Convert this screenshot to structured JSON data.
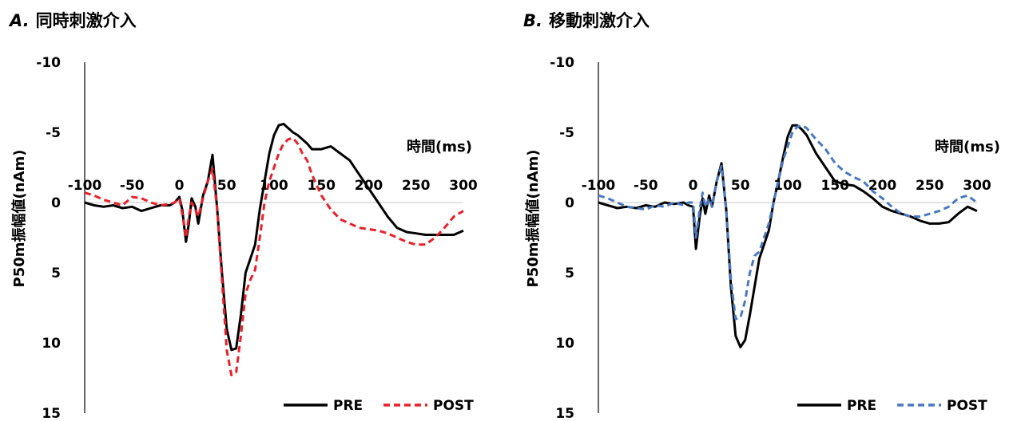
{
  "chart_data": [
    {
      "panel": "A.",
      "title": "同時刺激介入",
      "type": "line",
      "xlabel": "時間(ms)",
      "ylabel": "P50m振幅値(nAm)",
      "xlim": [
        -100,
        300
      ],
      "ylim": [
        -10,
        15
      ],
      "y_inverted": true,
      "x_ticks": [
        -100,
        -50,
        0,
        50,
        100,
        150,
        200,
        250,
        300
      ],
      "y_ticks": [
        -10,
        -5,
        0,
        5,
        10,
        15
      ],
      "grid": false,
      "legend_position": "bottom-right",
      "series": [
        {
          "name": "PRE",
          "color": "#000000",
          "dash": "solid",
          "x": [
            -100,
            -90,
            -80,
            -70,
            -60,
            -50,
            -40,
            -30,
            -20,
            -10,
            -5,
            0,
            3,
            7,
            10,
            13,
            17,
            20,
            25,
            30,
            35,
            40,
            45,
            50,
            55,
            60,
            65,
            70,
            75,
            80,
            85,
            90,
            95,
            100,
            105,
            110,
            115,
            120,
            125,
            130,
            135,
            140,
            150,
            160,
            170,
            180,
            190,
            200,
            210,
            220,
            230,
            240,
            250,
            260,
            270,
            280,
            290,
            300
          ],
          "y": [
            0.0,
            0.2,
            0.3,
            0.2,
            0.4,
            0.3,
            0.6,
            0.4,
            0.2,
            0.2,
            0.0,
            -0.4,
            0.5,
            2.8,
            1.5,
            -0.3,
            0.3,
            1.5,
            -0.5,
            -1.5,
            -3.4,
            0.5,
            5.0,
            9.0,
            10.5,
            10.4,
            8.0,
            5.0,
            4.0,
            3.0,
            0.5,
            -1.5,
            -3.5,
            -4.8,
            -5.5,
            -5.6,
            -5.3,
            -5.0,
            -4.8,
            -4.5,
            -4.2,
            -3.8,
            -3.8,
            -4.0,
            -3.5,
            -3.0,
            -2.0,
            -1.0,
            0.0,
            1.0,
            1.8,
            2.1,
            2.2,
            2.3,
            2.3,
            2.3,
            2.3,
            2.0
          ]
        },
        {
          "name": "POST",
          "color": "#e8202a",
          "dash": "dashed",
          "x": [
            -100,
            -90,
            -80,
            -70,
            -60,
            -50,
            -40,
            -30,
            -20,
            -10,
            -5,
            0,
            3,
            7,
            10,
            13,
            17,
            20,
            25,
            30,
            35,
            40,
            45,
            50,
            55,
            60,
            65,
            70,
            75,
            80,
            85,
            90,
            95,
            100,
            105,
            110,
            115,
            120,
            125,
            130,
            135,
            140,
            150,
            160,
            170,
            180,
            190,
            200,
            210,
            220,
            230,
            240,
            250,
            260,
            270,
            280,
            290,
            300
          ],
          "y": [
            -0.7,
            -0.5,
            -0.2,
            0.0,
            0.2,
            -0.4,
            -0.3,
            0.0,
            0.2,
            0.1,
            0.0,
            -0.3,
            0.8,
            2.5,
            1.0,
            0.0,
            0.5,
            1.0,
            -0.3,
            -1.5,
            -2.4,
            0.5,
            5.5,
            10.5,
            12.3,
            12.1,
            9.5,
            6.5,
            5.5,
            4.8,
            2.5,
            0.0,
            -1.5,
            -2.5,
            -3.5,
            -4.2,
            -4.5,
            -4.6,
            -4.2,
            -3.5,
            -3.0,
            -2.0,
            -0.5,
            0.5,
            1.2,
            1.5,
            1.8,
            1.9,
            2.0,
            2.2,
            2.5,
            2.8,
            3.0,
            3.0,
            2.5,
            1.8,
            1.0,
            0.6
          ]
        }
      ]
    },
    {
      "panel": "B.",
      "title": "移動刺激介入",
      "type": "line",
      "xlabel": "時間(ms)",
      "ylabel": "P50m振幅値(nAm)",
      "xlim": [
        -100,
        300
      ],
      "ylim": [
        -10,
        15
      ],
      "y_inverted": true,
      "x_ticks": [
        -100,
        -50,
        0,
        50,
        100,
        150,
        200,
        250,
        300
      ],
      "y_ticks": [
        -10,
        -5,
        0,
        5,
        10,
        15
      ],
      "grid": false,
      "legend_position": "bottom-right",
      "series": [
        {
          "name": "PRE",
          "color": "#000000",
          "dash": "solid",
          "x": [
            -100,
            -90,
            -80,
            -70,
            -60,
            -50,
            -40,
            -30,
            -20,
            -10,
            -5,
            0,
            3,
            7,
            10,
            13,
            17,
            20,
            25,
            30,
            35,
            40,
            45,
            50,
            55,
            60,
            65,
            70,
            75,
            80,
            85,
            90,
            95,
            100,
            105,
            110,
            115,
            120,
            130,
            140,
            150,
            160,
            170,
            180,
            190,
            200,
            210,
            220,
            230,
            240,
            250,
            260,
            270,
            280,
            290,
            300
          ],
          "y": [
            0.0,
            0.2,
            0.4,
            0.3,
            0.4,
            0.2,
            0.3,
            0.0,
            0.1,
            0.0,
            0.2,
            0.3,
            3.3,
            1.0,
            -0.3,
            0.8,
            -0.5,
            0.3,
            -1.5,
            -2.8,
            0.5,
            6.0,
            9.5,
            10.3,
            9.8,
            8.0,
            6.0,
            4.0,
            3.0,
            2.0,
            0.0,
            -1.5,
            -3.2,
            -4.7,
            -5.5,
            -5.5,
            -5.2,
            -4.8,
            -3.5,
            -2.5,
            -1.5,
            -1.3,
            -1.2,
            -0.8,
            -0.3,
            0.3,
            0.6,
            0.8,
            1.0,
            1.3,
            1.5,
            1.5,
            1.4,
            0.8,
            0.3,
            0.6
          ]
        },
        {
          "name": "POST",
          "color": "#4a78c0",
          "dash": "dashed",
          "x": [
            -100,
            -90,
            -80,
            -70,
            -60,
            -50,
            -40,
            -30,
            -20,
            -10,
            -5,
            0,
            3,
            7,
            10,
            13,
            17,
            20,
            25,
            30,
            35,
            40,
            45,
            50,
            55,
            60,
            65,
            70,
            75,
            80,
            85,
            90,
            95,
            100,
            105,
            110,
            115,
            120,
            130,
            140,
            150,
            160,
            170,
            180,
            190,
            200,
            210,
            220,
            230,
            240,
            250,
            260,
            270,
            280,
            290,
            300
          ],
          "y": [
            -0.5,
            -0.3,
            0.0,
            0.3,
            0.4,
            0.5,
            0.2,
            0.3,
            0.0,
            0.2,
            0.0,
            0.0,
            2.5,
            0.5,
            -0.7,
            0.3,
            -0.3,
            0.3,
            -1.5,
            -2.6,
            0.5,
            5.5,
            8.3,
            8.2,
            7.0,
            5.0,
            3.8,
            3.5,
            2.5,
            1.5,
            0.0,
            -1.5,
            -3.0,
            -4.0,
            -5.0,
            -5.4,
            -5.5,
            -5.3,
            -4.5,
            -3.8,
            -2.8,
            -2.2,
            -1.8,
            -1.5,
            -0.8,
            -0.3,
            0.3,
            0.8,
            1.0,
            1.0,
            0.8,
            0.6,
            0.3,
            -0.3,
            -0.5,
            0.0
          ]
        }
      ]
    }
  ]
}
